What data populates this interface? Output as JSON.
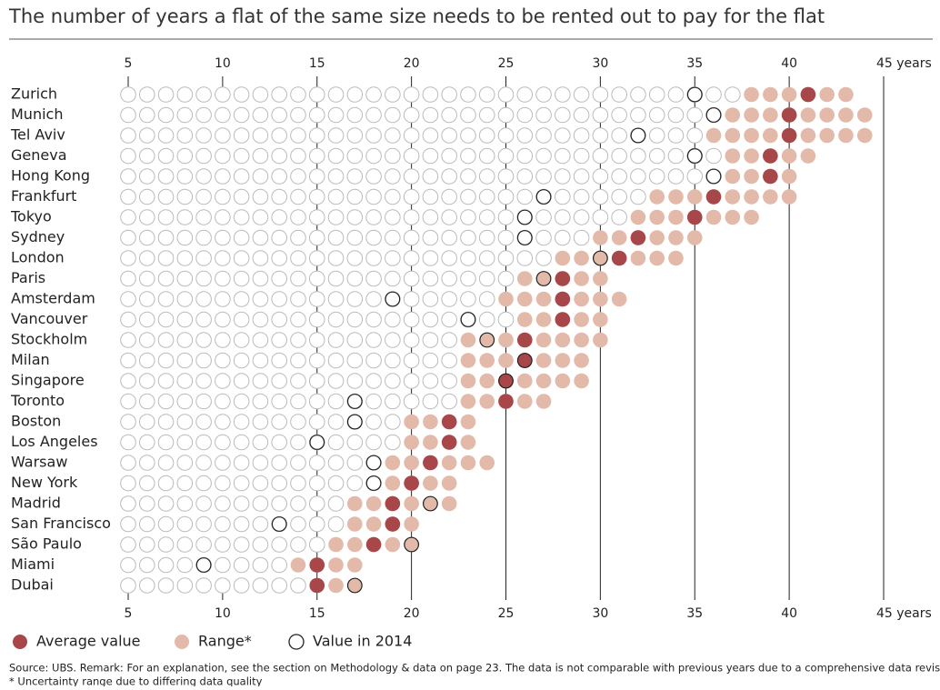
{
  "chart_data": {
    "type": "dot",
    "title": "The number of years a flat of the same size needs to be rented out to pay for the flat",
    "categories": [
      "Zurich",
      "Munich",
      "Tel Aviv",
      "Geneva",
      "Hong Kong",
      "Frankfurt",
      "Tokyo",
      "Sydney",
      "London",
      "Paris",
      "Amsterdam",
      "Vancouver",
      "Stockholm",
      "Milan",
      "Singapore",
      "Toronto",
      "Boston",
      "Los Angeles",
      "Warsaw",
      "New York",
      "Madrid",
      "San Francisco",
      "São Paulo",
      "Miami",
      "Dubai"
    ],
    "xlim": [
      5,
      45
    ],
    "xticks": [
      5,
      10,
      15,
      20,
      25,
      30,
      35,
      40,
      {
        "value": 45,
        "label": "45 years"
      }
    ],
    "series": [
      {
        "name": "Average value",
        "color": "#a8474a",
        "values": [
          41,
          40,
          40,
          39,
          39,
          36,
          35,
          32,
          31,
          28,
          28,
          28,
          26,
          26,
          25,
          25,
          22,
          22,
          21,
          20,
          19,
          19,
          18,
          15,
          15
        ]
      },
      {
        "name": "Range*",
        "color": "#e3b9a9",
        "low": [
          38,
          37,
          36,
          37,
          37,
          33,
          32,
          30,
          28,
          26,
          25,
          26,
          23,
          23,
          23,
          23,
          20,
          20,
          19,
          19,
          17,
          17,
          16,
          14,
          15
        ],
        "high": [
          43,
          44,
          44,
          41,
          40,
          40,
          38,
          35,
          34,
          30,
          31,
          30,
          30,
          29,
          29,
          27,
          23,
          23,
          24,
          22,
          22,
          20,
          20,
          17,
          17
        ]
      },
      {
        "name": "Value in 2014",
        "color": "#222222",
        "values": [
          35,
          36,
          32,
          35,
          36,
          27,
          26,
          26,
          30,
          27,
          19,
          23,
          24,
          26,
          25,
          17,
          17,
          15,
          18,
          18,
          21,
          13,
          20,
          9,
          17
        ]
      }
    ],
    "source": "Source: UBS. Remark: For an explanation, see the section on Methodology & data on page 23. The data is not comparable with previous years due to a comprehensive data revision.",
    "footnote": "* Uncertainty range due to differing data quality"
  }
}
